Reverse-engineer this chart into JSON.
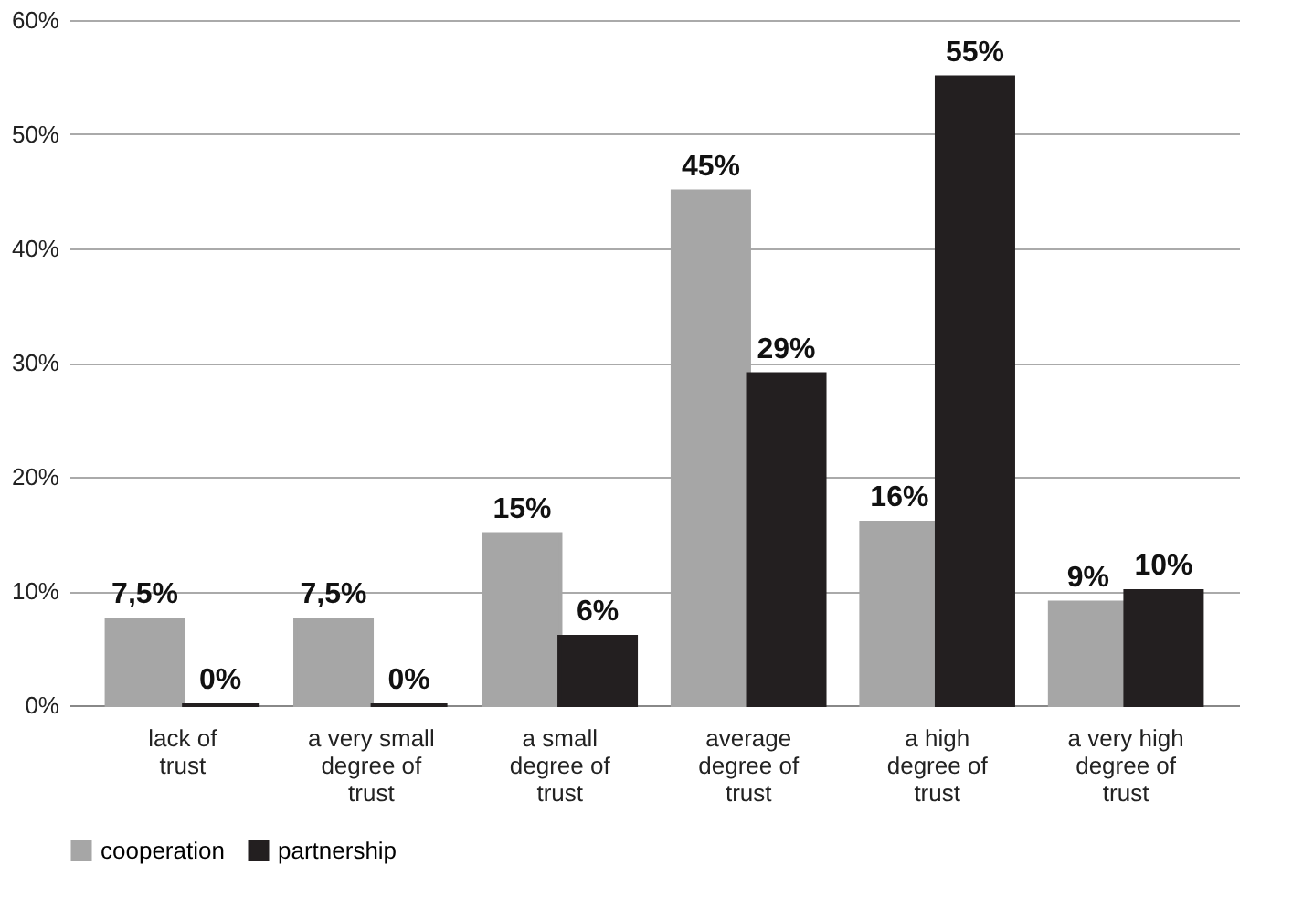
{
  "chart_data": {
    "type": "bar",
    "categories": [
      "lack of trust",
      "a very small degree of trust",
      "a small degree of trust",
      "average degree of trust",
      "a high degree of trust",
      "a very high degree of trust"
    ],
    "series": [
      {
        "name": "cooperation",
        "color": "#a6a6a6",
        "values": [
          7.5,
          7.5,
          15,
          45,
          16,
          9
        ],
        "value_labels": [
          "7,5%",
          "7,5%",
          "15%",
          "45%",
          "16%",
          "9%"
        ]
      },
      {
        "name": "partnership",
        "color": "#231f20",
        "values": [
          0,
          0,
          6,
          29,
          55,
          10
        ],
        "value_labels": [
          "0%",
          "0%",
          "6%",
          "29%",
          "55%",
          "10%"
        ]
      }
    ],
    "ylim": [
      0,
      60
    ],
    "yticks": [
      {
        "value": 0,
        "label": "0%"
      },
      {
        "value": 10,
        "label": "10%"
      },
      {
        "value": 20,
        "label": "20%"
      },
      {
        "value": 30,
        "label": "30%"
      },
      {
        "value": 40,
        "label": "40%"
      },
      {
        "value": 50,
        "label": "50%"
      },
      {
        "value": 60,
        "label": "60%"
      }
    ],
    "grid": "y",
    "legend": "bottom"
  }
}
